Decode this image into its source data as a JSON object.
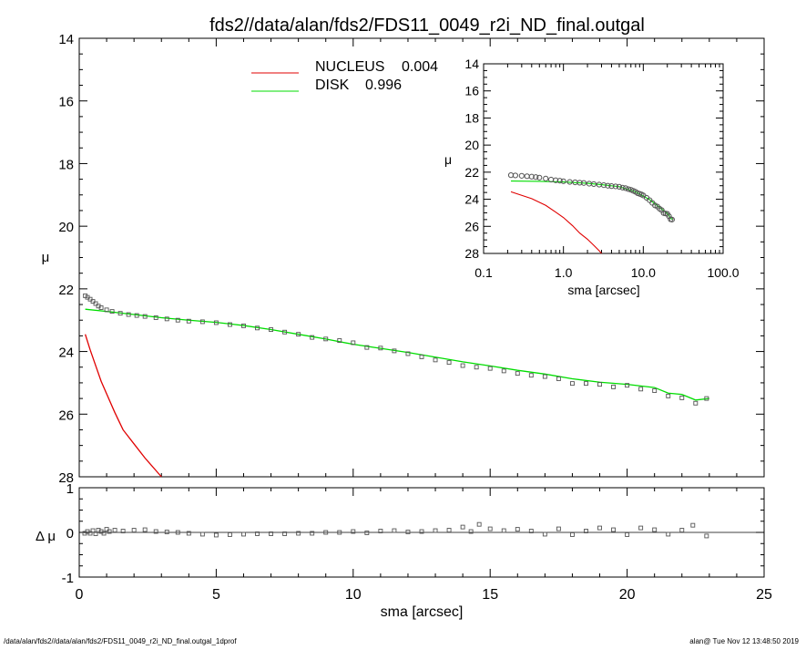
{
  "title": "fds2//data/alan/fds2/FDS11_0049_r2i_ND_final.outgal",
  "footer_left": "/data/alan/fds2//data/alan/fds2/FDS11_0049_r2i_ND_final.outgal_1dprof",
  "footer_right": "alan@  Tue Nov 12 13:48:50 2019",
  "colors": {
    "nucleus": "#e00000",
    "disk": "#00dd00",
    "data": "#555555",
    "axes": "#000000"
  },
  "chart_data": [
    {
      "type": "line",
      "panel": "main",
      "xlabel": "sma [arcsec]",
      "ylabel": "μ",
      "xlim": [
        0,
        25
      ],
      "ylim": [
        28,
        14
      ],
      "x_ticks": [
        "0",
        "5",
        "10",
        "15",
        "20",
        "25"
      ],
      "y_ticks": [
        "14",
        "16",
        "18",
        "20",
        "22",
        "24",
        "26",
        "28"
      ],
      "legend": [
        {
          "label": "NUCLEUS",
          "value": "0.004",
          "color": "#e00000"
        },
        {
          "label": "DISK",
          "value": "0.996",
          "color": "#00dd00"
        }
      ],
      "series": [
        {
          "name": "NUCLEUS",
          "kind": "line",
          "x": [
            0.22,
            0.4,
            0.6,
            0.8,
            1.0,
            1.3,
            1.6,
            2.0,
            2.4,
            2.8,
            3.0
          ],
          "y": [
            23.45,
            23.95,
            24.45,
            24.95,
            25.35,
            25.95,
            26.5,
            26.95,
            27.4,
            27.8,
            28.0
          ]
        },
        {
          "name": "DISK",
          "kind": "line",
          "x": [
            0.22,
            1,
            2,
            3,
            4,
            5,
            6,
            7,
            8,
            9,
            10,
            11,
            12,
            13,
            14,
            15,
            16,
            17,
            18,
            19,
            20,
            21,
            21.5,
            22,
            22.5,
            23
          ],
          "y": [
            22.65,
            22.72,
            22.82,
            22.92,
            23.0,
            23.07,
            23.17,
            23.3,
            23.45,
            23.6,
            23.77,
            23.9,
            24.03,
            24.18,
            24.33,
            24.46,
            24.6,
            24.72,
            24.87,
            24.98,
            25.05,
            25.15,
            25.33,
            25.37,
            25.55,
            25.5
          ]
        },
        {
          "name": "data",
          "kind": "markers",
          "x": [
            0.22,
            0.3,
            0.4,
            0.5,
            0.6,
            0.7,
            0.8,
            1.0,
            1.2,
            1.5,
            1.8,
            2.1,
            2.4,
            2.8,
            3.2,
            3.6,
            4.0,
            4.5,
            5.0,
            5.5,
            6.0,
            6.5,
            7.0,
            7.5,
            8.0,
            8.5,
            9.0,
            9.5,
            10.0,
            10.5,
            11.0,
            11.5,
            12.0,
            12.5,
            13.0,
            13.5,
            14.0,
            14.5,
            15.0,
            15.5,
            16.0,
            16.5,
            17.0,
            17.5,
            18.0,
            18.5,
            19.0,
            19.5,
            20.0,
            20.5,
            21.0,
            21.5,
            22.0,
            22.5,
            22.9
          ],
          "y": [
            22.22,
            22.27,
            22.33,
            22.4,
            22.47,
            22.55,
            22.6,
            22.67,
            22.72,
            22.78,
            22.82,
            22.85,
            22.88,
            22.92,
            22.96,
            23.0,
            23.03,
            23.05,
            23.08,
            23.14,
            23.18,
            23.25,
            23.3,
            23.38,
            23.45,
            23.55,
            23.6,
            23.65,
            23.72,
            23.87,
            23.89,
            23.98,
            24.07,
            24.17,
            24.27,
            24.35,
            24.45,
            24.5,
            24.54,
            24.62,
            24.7,
            24.76,
            24.8,
            24.87,
            25.02,
            25.02,
            25.05,
            25.13,
            25.08,
            25.2,
            25.25,
            25.42,
            25.48,
            25.65,
            25.5
          ]
        }
      ]
    },
    {
      "type": "scatter",
      "panel": "residual",
      "xlabel": "sma [arcsec]",
      "ylabel": "Δ μ",
      "xlim": [
        0,
        25
      ],
      "ylim": [
        -1,
        1
      ],
      "x_ticks": [
        "0",
        "5",
        "10",
        "15",
        "20",
        "25"
      ],
      "y_ticks": [
        "1",
        "0",
        "-1"
      ],
      "series": [
        {
          "name": "residual",
          "kind": "markers",
          "x": [
            0.2,
            0.3,
            0.4,
            0.5,
            0.6,
            0.7,
            0.8,
            0.9,
            1.0,
            1.1,
            1.3,
            1.6,
            2.0,
            2.4,
            2.8,
            3.2,
            3.6,
            4.0,
            4.5,
            5.0,
            5.5,
            6.0,
            6.5,
            7.0,
            7.5,
            8.0,
            8.5,
            9.0,
            9.5,
            10.0,
            10.5,
            11.0,
            11.5,
            12.0,
            12.5,
            13.0,
            13.5,
            14.0,
            14.3,
            14.6,
            15.0,
            15.5,
            16.0,
            16.5,
            17.0,
            17.5,
            18.0,
            18.5,
            19.0,
            19.5,
            20.0,
            20.5,
            21.0,
            21.5,
            22.0,
            22.4,
            22.9
          ],
          "y": [
            -0.02,
            0.02,
            -0.02,
            0.04,
            -0.03,
            0.05,
            0.02,
            -0.02,
            0.07,
            0.02,
            0.05,
            0.03,
            0.05,
            0.06,
            0.02,
            0.01,
            0.0,
            -0.02,
            -0.04,
            -0.06,
            -0.05,
            -0.04,
            -0.03,
            -0.03,
            -0.03,
            -0.02,
            -0.02,
            0.0,
            0.0,
            0.02,
            -0.01,
            0.03,
            0.04,
            0.01,
            0.02,
            0.04,
            0.05,
            0.12,
            0.02,
            0.18,
            0.08,
            0.04,
            0.07,
            0.03,
            -0.04,
            0.08,
            -0.05,
            0.03,
            0.1,
            0.06,
            -0.05,
            0.1,
            0.06,
            -0.04,
            0.05,
            0.16,
            -0.08
          ]
        }
      ]
    },
    {
      "type": "line",
      "panel": "inset",
      "xlabel": "sma [arcsec]",
      "ylabel": "μ",
      "xscale": "log",
      "xlim": [
        0.1,
        100
      ],
      "ylim": [
        28,
        14
      ],
      "x_ticks": [
        "0.1",
        "1.0",
        "10.0",
        "100.0"
      ],
      "y_ticks": [
        "14",
        "16",
        "18",
        "20",
        "22",
        "24",
        "26",
        "28"
      ],
      "series": [
        {
          "name": "NUCLEUS",
          "kind": "line",
          "x": [
            0.22,
            0.4,
            0.6,
            0.8,
            1.0,
            1.3,
            1.6,
            2.0,
            2.4,
            2.8,
            3.0
          ],
          "y": [
            23.45,
            23.95,
            24.45,
            24.95,
            25.35,
            25.95,
            26.5,
            26.95,
            27.4,
            27.8,
            28.0
          ]
        },
        {
          "name": "DISK",
          "kind": "line",
          "x": [
            0.22,
            0.5,
            1.0,
            2.0,
            3.0,
            5.0,
            8.0,
            12.0,
            16.0,
            20.0,
            23.0
          ],
          "y": [
            22.65,
            22.68,
            22.72,
            22.82,
            22.92,
            23.07,
            23.45,
            24.03,
            24.6,
            25.05,
            25.5
          ]
        },
        {
          "name": "data",
          "kind": "markers",
          "x": [
            0.22,
            0.25,
            0.3,
            0.35,
            0.4,
            0.45,
            0.5,
            0.6,
            0.7,
            0.8,
            0.9,
            1.0,
            1.2,
            1.4,
            1.6,
            1.8,
            2.1,
            2.4,
            2.8,
            3.2,
            3.6,
            4.0,
            4.5,
            5.0,
            5.5,
            6.0,
            6.5,
            7.0,
            7.5,
            8.0,
            8.5,
            9.0,
            9.5,
            10.0,
            11.0,
            12.0,
            13.0,
            14.0,
            15.0,
            16.0,
            17.0,
            18.0,
            19.0,
            20.0,
            21.0,
            22.0,
            22.9
          ],
          "y": [
            22.22,
            22.24,
            22.27,
            22.3,
            22.33,
            22.36,
            22.4,
            22.47,
            22.55,
            22.6,
            22.63,
            22.67,
            22.72,
            22.75,
            22.78,
            22.8,
            22.85,
            22.88,
            22.92,
            22.96,
            23.0,
            23.03,
            23.05,
            23.08,
            23.14,
            23.18,
            23.25,
            23.3,
            23.38,
            23.45,
            23.55,
            23.6,
            23.65,
            23.72,
            23.89,
            24.07,
            24.27,
            24.45,
            24.54,
            24.7,
            24.8,
            25.02,
            25.05,
            25.08,
            25.25,
            25.48,
            25.5
          ]
        }
      ]
    }
  ]
}
